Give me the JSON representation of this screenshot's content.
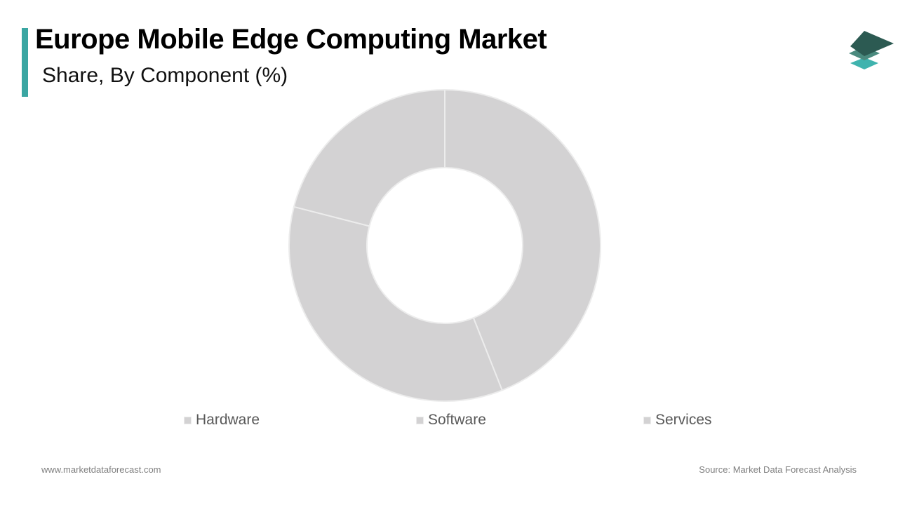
{
  "header": {
    "title": "Europe Mobile Edge Computing Market",
    "subtitle": "Share, By Component (%)"
  },
  "colors": {
    "accent": "#3aa6a2",
    "slice_fill": "#d3d2d3",
    "slice_stroke": "#ececec",
    "logo_top": "#2c5a52",
    "logo_mid": "#4a8a7e",
    "logo_bottom": "#3fb3ae"
  },
  "chart_data": {
    "type": "pie",
    "donut": true,
    "title": "Share, By Component (%)",
    "categories": [
      "Hardware",
      "Software",
      "Services"
    ],
    "values": [
      44,
      35,
      21
    ],
    "legend_position": "bottom"
  },
  "footer": {
    "website": "www.marketdataforecast.com",
    "source": "Source: Market Data Forecast Analysis"
  }
}
